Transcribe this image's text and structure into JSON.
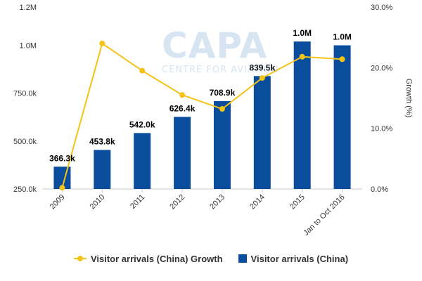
{
  "chart_data": {
    "type": "bar",
    "categories": [
      "2009",
      "2010",
      "2011",
      "2012",
      "2013",
      "2014",
      "2015",
      "Jan to Oct 2016"
    ],
    "series": [
      {
        "name": "Visitor arrivals (China)",
        "kind": "bar",
        "axis": "left",
        "color": "#0a4d9c",
        "values": [
          366300,
          453800,
          542000,
          626400,
          708900,
          839500,
          1020000,
          1000000
        ],
        "labels": [
          "366.3k",
          "453.8k",
          "542.0k",
          "626.4k",
          "708.9k",
          "839.5k",
          "1.0M",
          "1.0M"
        ]
      },
      {
        "name": "Visitor arrivals (China) Growth",
        "kind": "line",
        "axis": "right",
        "color": "#f5c318",
        "values": [
          0.2,
          24.0,
          19.5,
          15.5,
          13.2,
          18.3,
          21.8,
          21.4
        ]
      }
    ],
    "y_left": {
      "min": 250000,
      "max": 1200000,
      "ticks": [
        250000,
        500000,
        750000,
        1000000,
        1200000
      ],
      "tick_labels": [
        "250.0k",
        "500.0k",
        "750.0k",
        "1.0M",
        "1.2M"
      ]
    },
    "y_right": {
      "min": 0,
      "max": 30,
      "ticks": [
        0,
        10,
        20,
        30
      ],
      "tick_labels": [
        "0.0%",
        "10.0%",
        "20.0%",
        "30.0%"
      ],
      "label": "Growth (%)"
    },
    "legend": {
      "placement": "bottom",
      "items": [
        "Visitor arrivals (China) Growth",
        "Visitor arrivals (China)"
      ]
    },
    "grid": false
  },
  "watermark": {
    "big": "CAPA",
    "small": "CENTRE FOR AVIATION"
  }
}
